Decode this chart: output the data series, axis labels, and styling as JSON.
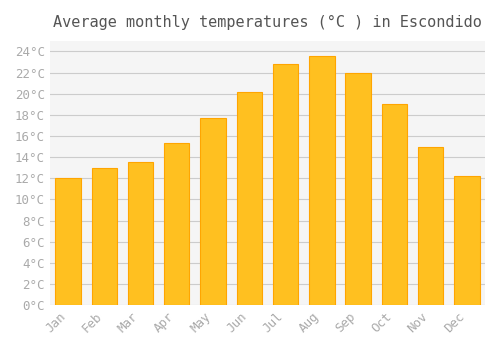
{
  "title": "Average monthly temperatures (°C ) in Escondido",
  "months": [
    "Jan",
    "Feb",
    "Mar",
    "Apr",
    "May",
    "Jun",
    "Jul",
    "Aug",
    "Sep",
    "Oct",
    "Nov",
    "Dec"
  ],
  "temperatures": [
    12.0,
    13.0,
    13.5,
    15.3,
    17.7,
    20.2,
    22.8,
    23.6,
    22.0,
    19.0,
    15.0,
    12.2
  ],
  "bar_color": "#FFC020",
  "bar_edge_color": "#FFA500",
  "background_color": "#FFFFFF",
  "plot_bg_color": "#F5F5F5",
  "grid_color": "#CCCCCC",
  "ylim": [
    0,
    25
  ],
  "ytick_step": 2,
  "title_fontsize": 11,
  "tick_fontsize": 9,
  "tick_color": "#AAAAAA",
  "title_color": "#555555"
}
